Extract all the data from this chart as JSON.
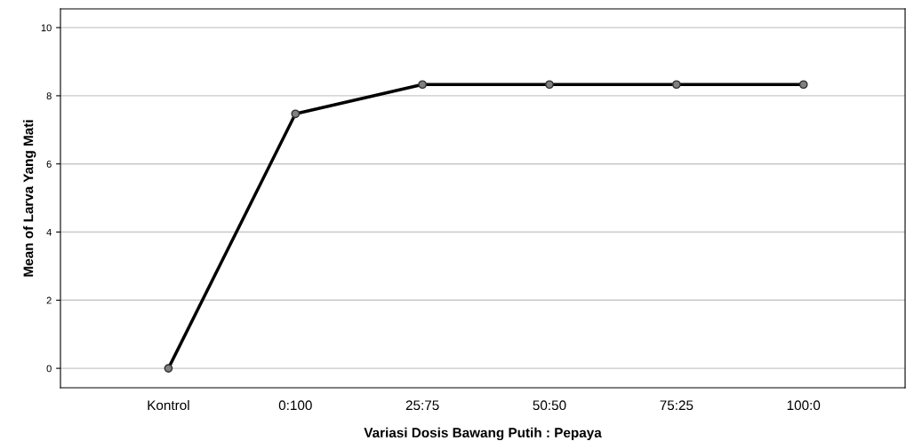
{
  "chart_data": {
    "type": "line",
    "xlabel": "Variasi Dosis Bawang Putih : Pepaya",
    "ylabel": "Mean of Larva Yang Mati",
    "categories": [
      "Kontrol",
      "0:100",
      "25:75",
      "50:50",
      "75:25",
      "100:0"
    ],
    "series": [
      {
        "color": "#000000",
        "values": [
          0,
          7.47,
          8.33,
          8.33,
          8.33,
          8.33
        ]
      }
    ],
    "ylim": [
      -0.57,
      10.55
    ],
    "yticks": [
      0,
      2,
      4,
      6,
      8,
      10
    ],
    "grid": "y",
    "marker": "circle",
    "line_style": "solid"
  }
}
